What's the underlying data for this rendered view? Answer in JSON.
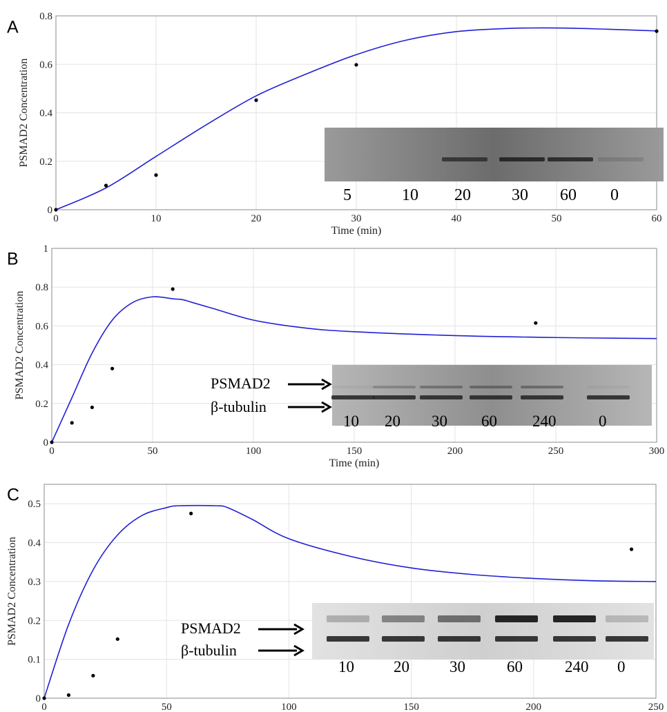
{
  "chart_data": [
    {
      "panel": "A",
      "type": "line",
      "xlabel": "Time (min)",
      "ylabel": "PSMAD2 Concentration",
      "xlim": [
        0,
        60
      ],
      "ylim": [
        0,
        0.8
      ],
      "xticks": [
        "0",
        "10",
        "20",
        "30",
        "40",
        "50",
        "60"
      ],
      "yticks": [
        "0",
        "0.2",
        "0.4",
        "0.6",
        "0.8"
      ],
      "grid": true,
      "line_color": "#1f1fd6",
      "model_curve": {
        "x": [
          0,
          5,
          10,
          15,
          20,
          25,
          30,
          35,
          40,
          45,
          50,
          55,
          60
        ],
        "y": [
          0,
          0.09,
          0.22,
          0.35,
          0.47,
          0.56,
          0.64,
          0.7,
          0.735,
          0.748,
          0.75,
          0.745,
          0.738
        ]
      },
      "measured_points": {
        "x": [
          0,
          5,
          10,
          20,
          30,
          60
        ],
        "y": [
          0,
          0.1,
          0.143,
          0.452,
          0.598,
          0.737
        ]
      },
      "blot": {
        "lanes": [
          "5",
          "10",
          "20",
          "30",
          "60",
          "0"
        ],
        "band_labels": []
      }
    },
    {
      "panel": "B",
      "type": "line",
      "xlabel": "Time (min)",
      "ylabel": "PSMAD2 Concentration",
      "xlim": [
        0,
        300
      ],
      "ylim": [
        0,
        1
      ],
      "xticks": [
        "0",
        "50",
        "100",
        "150",
        "200",
        "250",
        "300"
      ],
      "yticks": [
        "0",
        "0.2",
        "0.4",
        "0.6",
        "0.8",
        "1"
      ],
      "grid": true,
      "line_color": "#1f1fd6",
      "model_curve": {
        "x": [
          0,
          10,
          20,
          30,
          40,
          50,
          60,
          65,
          70,
          80,
          100,
          125,
          150,
          200,
          250,
          300
        ],
        "y": [
          0,
          0.23,
          0.46,
          0.63,
          0.72,
          0.75,
          0.74,
          0.735,
          0.72,
          0.69,
          0.63,
          0.59,
          0.57,
          0.55,
          0.54,
          0.535
        ]
      },
      "measured_points": {
        "x": [
          0,
          10,
          20,
          30,
          60,
          240
        ],
        "y": [
          0,
          0.1,
          0.18,
          0.38,
          0.79,
          0.615
        ]
      },
      "blot": {
        "lanes": [
          "10",
          "20",
          "30",
          "60",
          "240",
          "0"
        ],
        "band_labels": [
          "PSMAD2",
          "β-tubulin"
        ]
      }
    },
    {
      "panel": "C",
      "type": "line",
      "xlabel": "Time (min)",
      "ylabel": "PSMAD2 Concentration",
      "xlim": [
        0,
        250
      ],
      "ylim": [
        0,
        0.55
      ],
      "xticks": [
        "0",
        "50",
        "100",
        "150",
        "200",
        "250"
      ],
      "yticks": [
        "0",
        "0.1",
        "0.2",
        "0.3",
        "0.4",
        "0.5"
      ],
      "grid": true,
      "line_color": "#1f1fd6",
      "model_curve": {
        "x": [
          0,
          10,
          20,
          30,
          40,
          50,
          55,
          70,
          75,
          85,
          100,
          125,
          150,
          175,
          200,
          225,
          250
        ],
        "y": [
          0,
          0.19,
          0.33,
          0.42,
          0.47,
          0.49,
          0.495,
          0.495,
          0.49,
          0.46,
          0.41,
          0.365,
          0.335,
          0.318,
          0.308,
          0.302,
          0.3
        ]
      },
      "measured_points": {
        "x": [
          0,
          10,
          20,
          30,
          60,
          240
        ],
        "y": [
          0,
          0.008,
          0.058,
          0.152,
          0.475,
          0.383
        ]
      },
      "blot": {
        "lanes": [
          "10",
          "20",
          "30",
          "60",
          "240",
          "0"
        ],
        "band_labels": [
          "PSMAD2",
          "β-tubulin"
        ]
      }
    }
  ]
}
